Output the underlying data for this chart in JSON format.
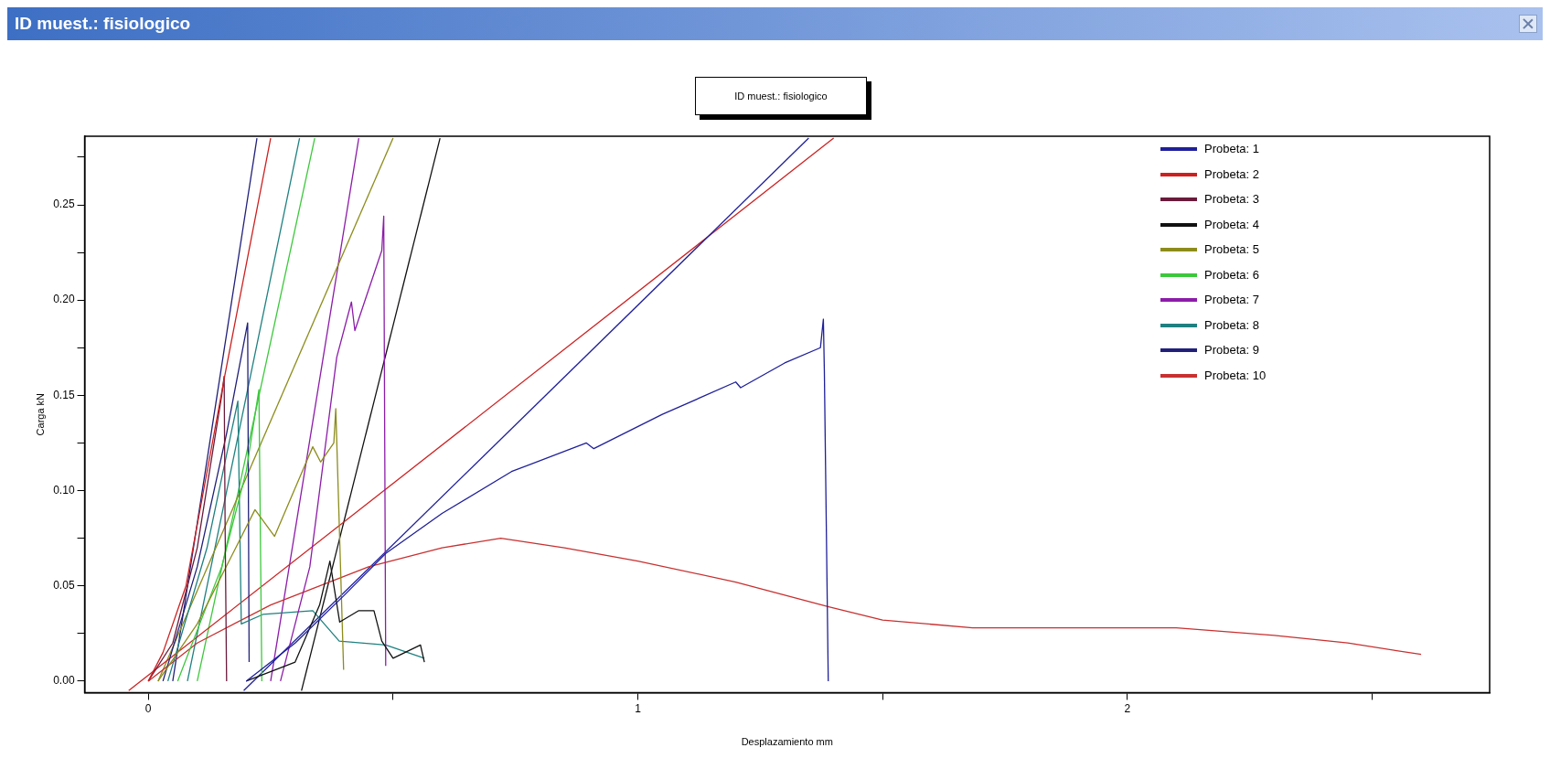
{
  "chart_data": {
    "type": "line",
    "title": "ID muest.: fisiologico",
    "xlabel": "Desplazamiento mm",
    "ylabel": "Carga kN",
    "annotations": [
      "ID muest.: fisiologico"
    ],
    "xlim": [
      -0.13,
      2.74
    ],
    "ylim": [
      -0.006,
      0.286
    ],
    "xticks": [
      0,
      {
        "value": 0.5,
        "label": null
      },
      1,
      {
        "value": 1.5,
        "label": null
      },
      2,
      {
        "value": 2.5,
        "label": null
      }
    ],
    "yticks": [
      {
        "value": 0,
        "label": "0.00"
      },
      {
        "value": 0.025,
        "label": null
      },
      {
        "value": 0.05,
        "label": "0.05"
      },
      {
        "value": 0.075,
        "label": null
      },
      {
        "value": 0.1,
        "label": "0.10"
      },
      {
        "value": 0.125,
        "label": null
      },
      {
        "value": 0.15,
        "label": "0.15"
      },
      {
        "value": 0.175,
        "label": null
      },
      {
        "value": 0.2,
        "label": "0.20"
      },
      {
        "value": 0.225,
        "label": null
      },
      {
        "value": 0.25,
        "label": "0.25"
      },
      {
        "value": 0.275,
        "label": null
      }
    ],
    "grid": false,
    "legend": "top right",
    "marker": "none",
    "line_style": "solid",
    "series": [
      {
        "name": "Probeta: 1",
        "color": "#1f1f9a",
        "x": [
          0.2,
          0.3,
          0.4,
          0.485,
          0.6,
          0.742,
          0.895,
          0.91,
          1.05,
          1.2,
          1.21,
          1.3,
          1.373,
          1.379,
          1.381,
          1.389
        ],
        "values": [
          0,
          0.02,
          0.045,
          0.067,
          0.088,
          0.11,
          0.125,
          0.122,
          0.14,
          0.157,
          0.154,
          0.167,
          0.175,
          0.19,
          0.163,
          0
        ]
      },
      {
        "name": "Probeta: 2",
        "color": "#cc2020",
        "x": [
          0,
          0.03,
          0.077,
          0.156,
          0.25
        ],
        "values": [
          0,
          0.015,
          0.05,
          0.16,
          0.285
        ]
      },
      {
        "name": "Probeta: 3",
        "color": "#6a1a3a",
        "x": [
          0,
          0.05,
          0.1,
          0.15,
          0.155,
          0.157,
          0.16
        ],
        "values": [
          0,
          0.02,
          0.07,
          0.15,
          0.16,
          0.08,
          0
        ]
      },
      {
        "name": "Probeta: 4",
        "color": "#111111",
        "x": [
          0.2,
          0.3,
          0.35,
          0.371,
          0.391,
          0.43,
          0.461,
          0.477,
          0.5,
          0.556,
          0.564
        ],
        "values": [
          0,
          0.01,
          0.04,
          0.063,
          0.031,
          0.037,
          0.037,
          0.021,
          0.012,
          0.019,
          0.01
        ]
      },
      {
        "name": "Probeta: 5",
        "color": "#8c8c1c",
        "x": [
          0.02,
          0.1,
          0.218,
          0.258,
          0.336,
          0.352,
          0.379,
          0.383,
          0.399
        ],
        "values": [
          0,
          0.03,
          0.09,
          0.076,
          0.123,
          0.115,
          0.125,
          0.143,
          0.006
        ]
      },
      {
        "name": "Probeta: 6",
        "color": "#3cc83c",
        "x": [
          0.06,
          0.15,
          0.2,
          0.226,
          0.232
        ],
        "values": [
          0,
          0.06,
          0.11,
          0.153,
          0
        ]
      },
      {
        "name": "Probeta: 7",
        "color": "#8c1ca8",
        "x": [
          0.27,
          0.33,
          0.385,
          0.415,
          0.422,
          0.477,
          0.481,
          0.485
        ],
        "values": [
          0,
          0.06,
          0.17,
          0.199,
          0.184,
          0.226,
          0.244,
          0.008
        ]
      },
      {
        "name": "Probeta: 8",
        "color": "#1f8080",
        "x": [
          0.04,
          0.12,
          0.183,
          0.19,
          0.234,
          0.336,
          0.39,
          0.485,
          0.564
        ],
        "values": [
          0,
          0.07,
          0.147,
          0.03,
          0.035,
          0.037,
          0.021,
          0.019,
          0.012
        ]
      },
      {
        "name": "Probeta: 9",
        "color": "#20207a",
        "x": [
          0.03,
          0.1,
          0.16,
          0.203,
          0.206
        ],
        "values": [
          0,
          0.06,
          0.13,
          0.188,
          0.01
        ]
      },
      {
        "name": "Probeta: 10",
        "color": "#c83030",
        "x": [
          0,
          0.1,
          0.25,
          0.45,
          0.6,
          0.72,
          0.85,
          1.0,
          1.2,
          1.39,
          1.5,
          1.684,
          1.9,
          2.1,
          2.3,
          2.45,
          2.6
        ],
        "values": [
          0,
          0.02,
          0.04,
          0.06,
          0.07,
          0.075,
          0.07,
          0.063,
          0.052,
          0.039,
          0.032,
          0.028,
          0.028,
          0.028,
          0.024,
          0.02,
          0.014
        ]
      },
      {
        "type": "line",
        "color": "#1f1f9a",
        "x": [
          0.195,
          1.349
        ],
        "values": [
          -0.005,
          0.285
        ]
      },
      {
        "type": "line",
        "color": "#cc2020",
        "x": [
          -0.04,
          1.4
        ],
        "values": [
          -0.005,
          0.285
        ]
      },
      {
        "type": "line",
        "color": "#111111",
        "x": [
          0.313,
          0.596
        ],
        "values": [
          -0.005,
          0.285
        ]
      },
      {
        "type": "line",
        "color": "#8c8c1c",
        "x": [
          0.02,
          0.5
        ],
        "values": [
          0,
          0.285
        ]
      },
      {
        "type": "line",
        "color": "#3cc83c",
        "x": [
          0.1,
          0.34
        ],
        "values": [
          0,
          0.285
        ]
      },
      {
        "type": "line",
        "color": "#8c1ca8",
        "x": [
          0.25,
          0.43
        ],
        "values": [
          0,
          0.285
        ]
      },
      {
        "type": "line",
        "color": "#1f8080",
        "x": [
          0.08,
          0.309
        ],
        "values": [
          0,
          0.285
        ]
      },
      {
        "type": "line",
        "color": "#20207a",
        "x": [
          0.05,
          0.222
        ],
        "values": [
          0,
          0.285
        ]
      }
    ]
  }
}
